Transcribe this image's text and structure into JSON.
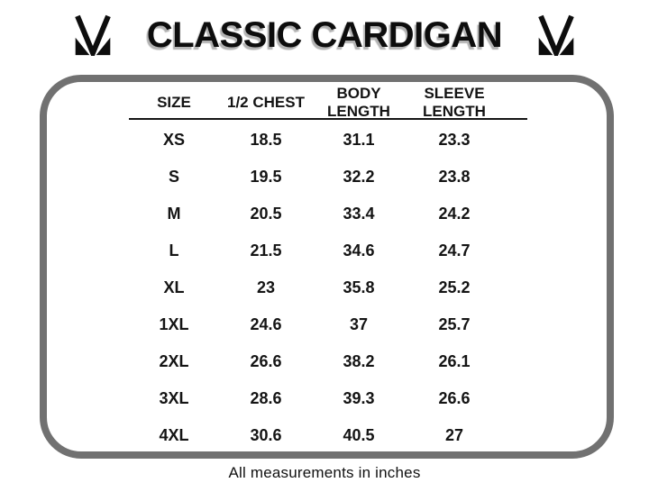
{
  "header": {
    "title": "CLASSIC CARDIGAN",
    "logo": "m-mark-icon"
  },
  "chart_data": {
    "type": "table",
    "title": "CLASSIC CARDIGAN",
    "columns": [
      "SIZE",
      "1/2 CHEST",
      "BODY LENGTH",
      "SLEEVE LENGTH"
    ],
    "rows": [
      [
        "XS",
        "18.5",
        "31.1",
        "23.3"
      ],
      [
        "S",
        "19.5",
        "32.2",
        "23.8"
      ],
      [
        "M",
        "20.5",
        "33.4",
        "24.2"
      ],
      [
        "L",
        "21.5",
        "34.6",
        "24.7"
      ],
      [
        "XL",
        "23",
        "35.8",
        "25.2"
      ],
      [
        "1XL",
        "24.6",
        "37",
        "25.7"
      ],
      [
        "2XL",
        "26.6",
        "38.2",
        "26.1"
      ],
      [
        "3XL",
        "28.6",
        "39.3",
        "26.6"
      ],
      [
        "4XL",
        "30.6",
        "40.5",
        "27"
      ]
    ]
  },
  "footer": {
    "note": "All measurements in inches"
  },
  "colors": {
    "frame_gray": "#717171",
    "text_black": "#141414",
    "title_shadow_gray": "#b3b3b3"
  }
}
